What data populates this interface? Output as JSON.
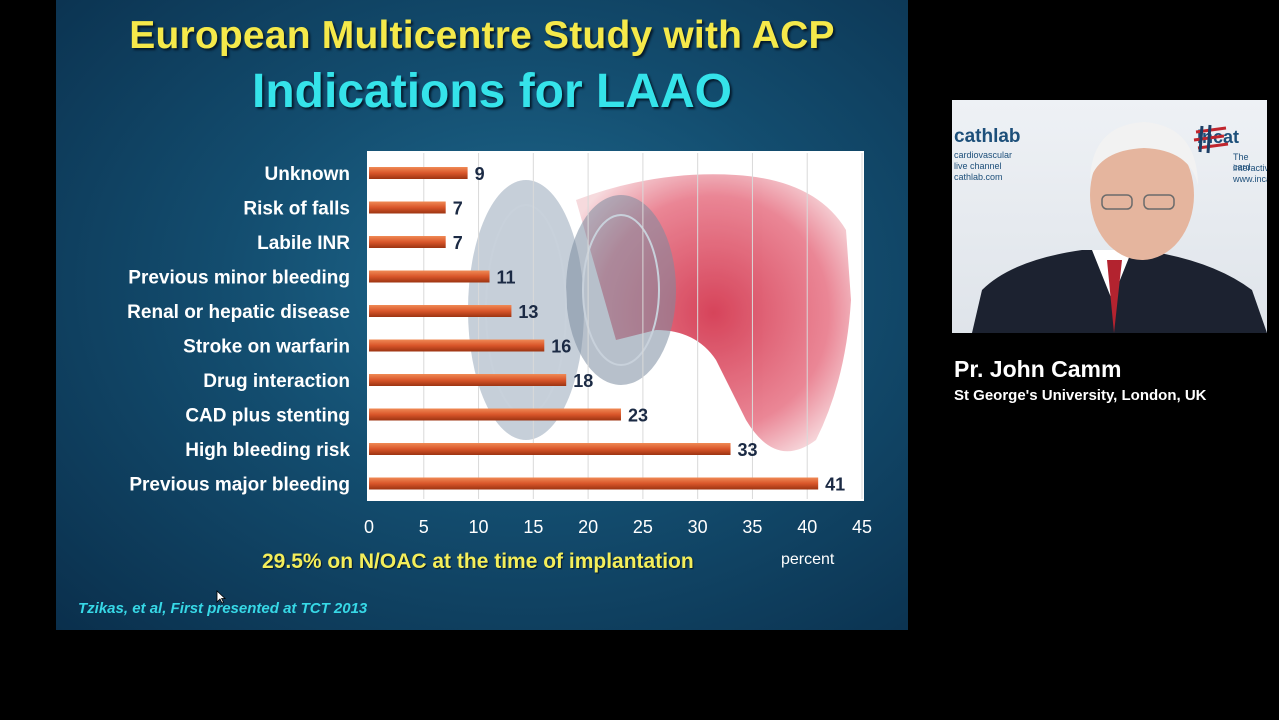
{
  "slide": {
    "title": "European Multicentre Study with ACP",
    "subtitle": "Indications for LAAO",
    "footnote": "29.5% on N/OAC at the time of implantation",
    "citation": "Tzikas, et al, First presented at TCT 2013"
  },
  "chart_data": {
    "type": "bar",
    "orientation": "horizontal",
    "categories": [
      "Unknown",
      "Risk of falls",
      "Labile INR",
      "Previous minor bleeding",
      "Renal or hepatic disease",
      "Stroke on warfarin",
      "Drug interaction",
      "CAD plus stenting",
      "High bleeding risk",
      "Previous major bleeding"
    ],
    "values": [
      9,
      7,
      7,
      11,
      13,
      16,
      18,
      23,
      33,
      41
    ],
    "xlabel": "percent",
    "xlim": [
      0,
      45
    ],
    "xticks": [
      0,
      5,
      10,
      15,
      20,
      25,
      30,
      35,
      40,
      45
    ],
    "bar_color": "#d9562a",
    "grid": true,
    "data_labels": true
  },
  "video": {
    "logo_left": "cathlab",
    "logo_left_line1": "cardiovascular",
    "logo_left_line2": "live channel",
    "logo_left_url": "cathlab.com",
    "logo_right": "incat",
    "logo_right_line1": "The card",
    "logo_right_line2": "interactiv",
    "logo_right_url": "www.inca"
  },
  "speaker": {
    "name": "Pr. John Camm",
    "affiliation": "St George's University, London, UK"
  }
}
